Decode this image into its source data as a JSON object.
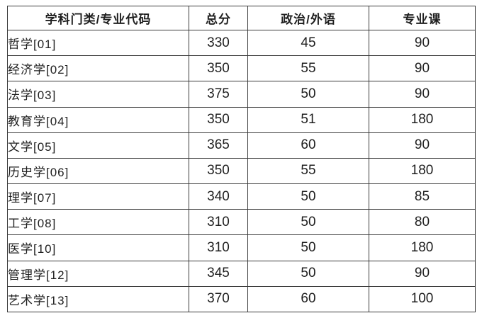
{
  "table": {
    "headers": [
      "学科门类/专业代码",
      "总分",
      "政治/外语",
      "专业课"
    ],
    "rows": [
      {
        "category": "哲学[01]",
        "total": "330",
        "politics_foreign": "45",
        "major_course": "90"
      },
      {
        "category": "经济学[02]",
        "total": "350",
        "politics_foreign": "55",
        "major_course": "90"
      },
      {
        "category": "法学[03]",
        "total": "375",
        "politics_foreign": "50",
        "major_course": "90"
      },
      {
        "category": "教育学[04]",
        "total": "350",
        "politics_foreign": "51",
        "major_course": "180"
      },
      {
        "category": "文学[05]",
        "total": "365",
        "politics_foreign": "60",
        "major_course": "90"
      },
      {
        "category": "历史学[06]",
        "total": "350",
        "politics_foreign": "55",
        "major_course": "180"
      },
      {
        "category": "理学[07]",
        "total": "340",
        "politics_foreign": "50",
        "major_course": "85"
      },
      {
        "category": "工学[08]",
        "total": "310",
        "politics_foreign": "50",
        "major_course": "80"
      },
      {
        "category": "医学[10]",
        "total": "310",
        "politics_foreign": "50",
        "major_course": "180"
      },
      {
        "category": "管理学[12]",
        "total": "345",
        "politics_foreign": "50",
        "major_course": "90"
      },
      {
        "category": "艺术学[13]",
        "total": "370",
        "politics_foreign": "60",
        "major_course": "100"
      }
    ]
  },
  "colors": {
    "background": "#ffffff",
    "border": "#3a3a3a",
    "text": "#1f1f1f"
  }
}
